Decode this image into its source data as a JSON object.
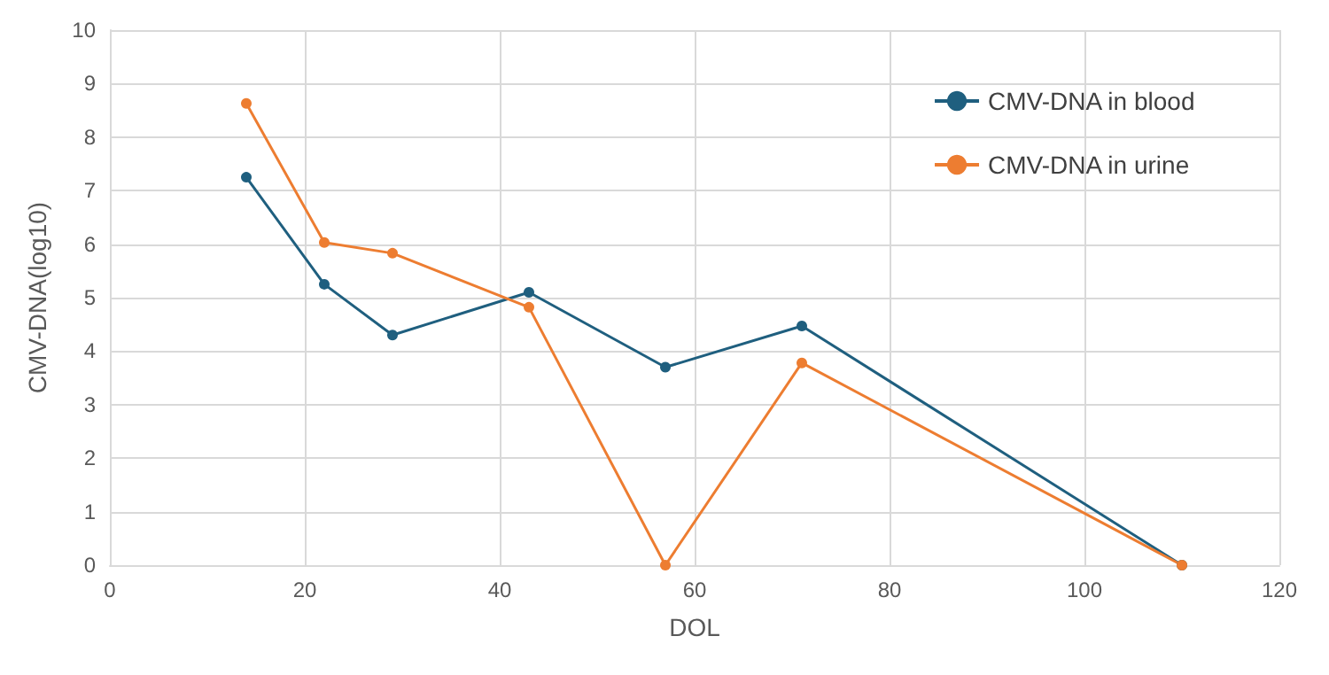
{
  "chart_data": {
    "type": "line",
    "xlabel": "DOL",
    "ylabel": "CMV-DNA(log10)",
    "xlim": [
      0,
      120
    ],
    "xticks": [
      0,
      20,
      40,
      60,
      80,
      100,
      120
    ],
    "ylim": [
      0,
      10
    ],
    "yticks": [
      0,
      1,
      2,
      3,
      4,
      5,
      6,
      7,
      8,
      9,
      10
    ],
    "grid": true,
    "legend": "top right",
    "marker": "circle",
    "series": [
      {
        "name": "CMV-DNA in blood",
        "color": "#1f5f7f",
        "x": [
          14,
          22,
          29,
          43,
          57,
          71,
          110
        ],
        "values": [
          7.25,
          5.25,
          4.3,
          5.1,
          3.7,
          4.47,
          0
        ]
      },
      {
        "name": "CMV-DNA in urine",
        "color": "#ed7d31",
        "x": [
          14,
          22,
          29,
          43,
          57,
          71,
          110
        ],
        "values": [
          8.63,
          6.03,
          5.83,
          4.82,
          0,
          3.78,
          0
        ]
      }
    ]
  }
}
